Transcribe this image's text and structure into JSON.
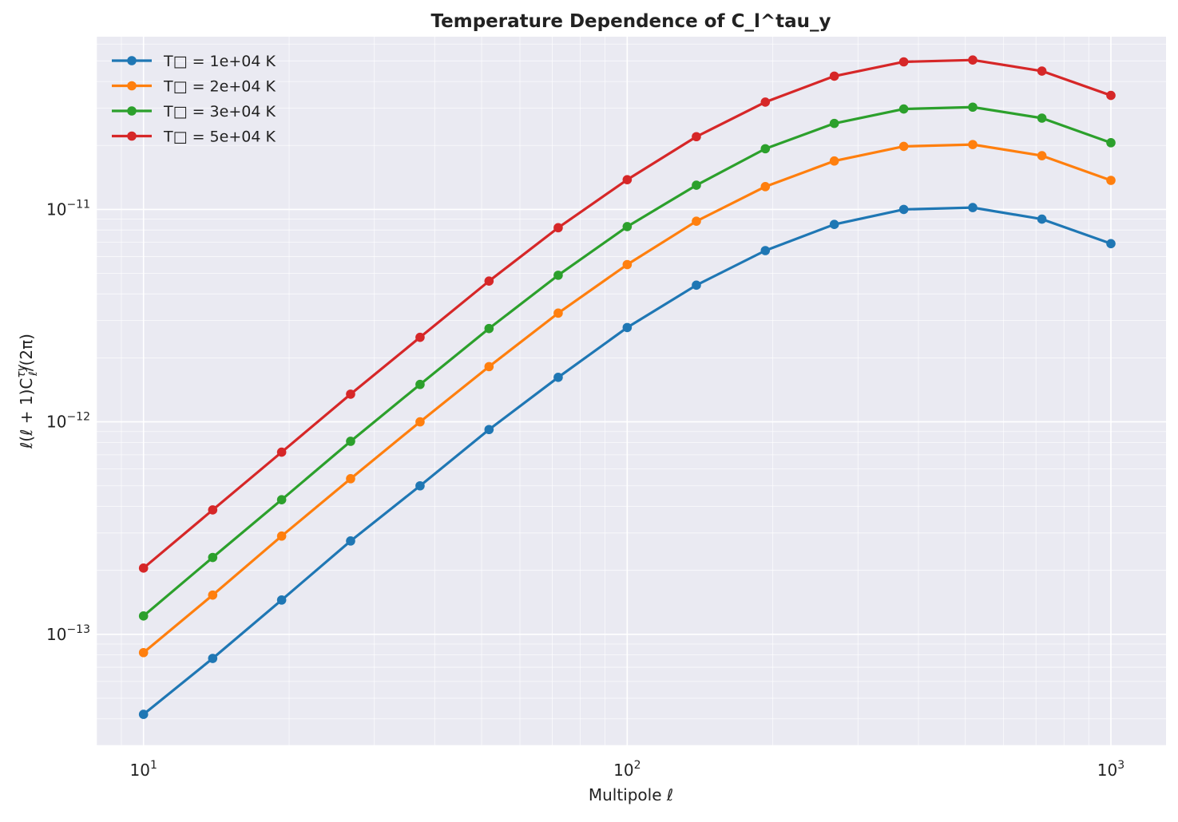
{
  "chart_data": {
    "type": "line",
    "title": "Temperature Dependence of C_l^tau_y",
    "xlabel": "Multipole ℓ",
    "ylabel": "ℓ(ℓ + 1)C_ℓ^{τy}/(2π)",
    "x_scale": "log",
    "y_scale": "log",
    "xlim": [
      8,
      1300
    ],
    "ylim": [
      3e-14,
      6.5e-11
    ],
    "x_ticks": [
      {
        "value": 10,
        "base": "10",
        "exp": "1"
      },
      {
        "value": 100,
        "base": "10",
        "exp": "2"
      },
      {
        "value": 1000,
        "base": "10",
        "exp": "3"
      }
    ],
    "y_ticks": [
      {
        "value": 1e-13,
        "base": "10",
        "exp": "−13"
      },
      {
        "value": 1e-12,
        "base": "10",
        "exp": "−12"
      },
      {
        "value": 1e-11,
        "base": "10",
        "exp": "−11"
      }
    ],
    "grid": true,
    "legend_position": "top-left",
    "x": [
      10,
      13.9,
      19.3,
      26.8,
      37.3,
      51.8,
      72.0,
      100,
      139,
      193,
      268,
      373,
      518,
      720,
      1000
    ],
    "series": [
      {
        "name": "T□ = 1e+04 K",
        "color": "#1f77b4",
        "values": [
          4.2e-14,
          7.7e-14,
          1.45e-13,
          2.75e-13,
          5e-13,
          9.2e-13,
          1.62e-12,
          2.78e-12,
          4.4e-12,
          6.4e-12,
          8.5e-12,
          1e-11,
          1.02e-11,
          9e-12,
          6.9e-12
        ]
      },
      {
        "name": "T□ = 2e+04 K",
        "color": "#ff7f0e",
        "values": [
          8.2e-14,
          1.53e-13,
          2.9e-13,
          5.4e-13,
          1e-12,
          1.82e-12,
          3.25e-12,
          5.5e-12,
          8.8e-12,
          1.28e-11,
          1.69e-11,
          1.98e-11,
          2.02e-11,
          1.79e-11,
          1.37e-11
        ]
      },
      {
        "name": "T□ = 3e+04 K",
        "color": "#2ca02c",
        "values": [
          1.22e-13,
          2.3e-13,
          4.3e-13,
          8.1e-13,
          1.5e-12,
          2.75e-12,
          4.9e-12,
          8.3e-12,
          1.3e-11,
          1.93e-11,
          2.54e-11,
          2.97e-11,
          3.03e-11,
          2.69e-11,
          2.06e-11
        ]
      },
      {
        "name": "T□ = 5e+04 K",
        "color": "#d62728",
        "values": [
          2.05e-13,
          3.85e-13,
          7.2e-13,
          1.35e-12,
          2.5e-12,
          4.6e-12,
          8.2e-12,
          1.38e-11,
          2.2e-11,
          3.2e-11,
          4.24e-11,
          4.95e-11,
          5.05e-11,
          4.48e-11,
          3.44e-11
        ]
      }
    ]
  }
}
